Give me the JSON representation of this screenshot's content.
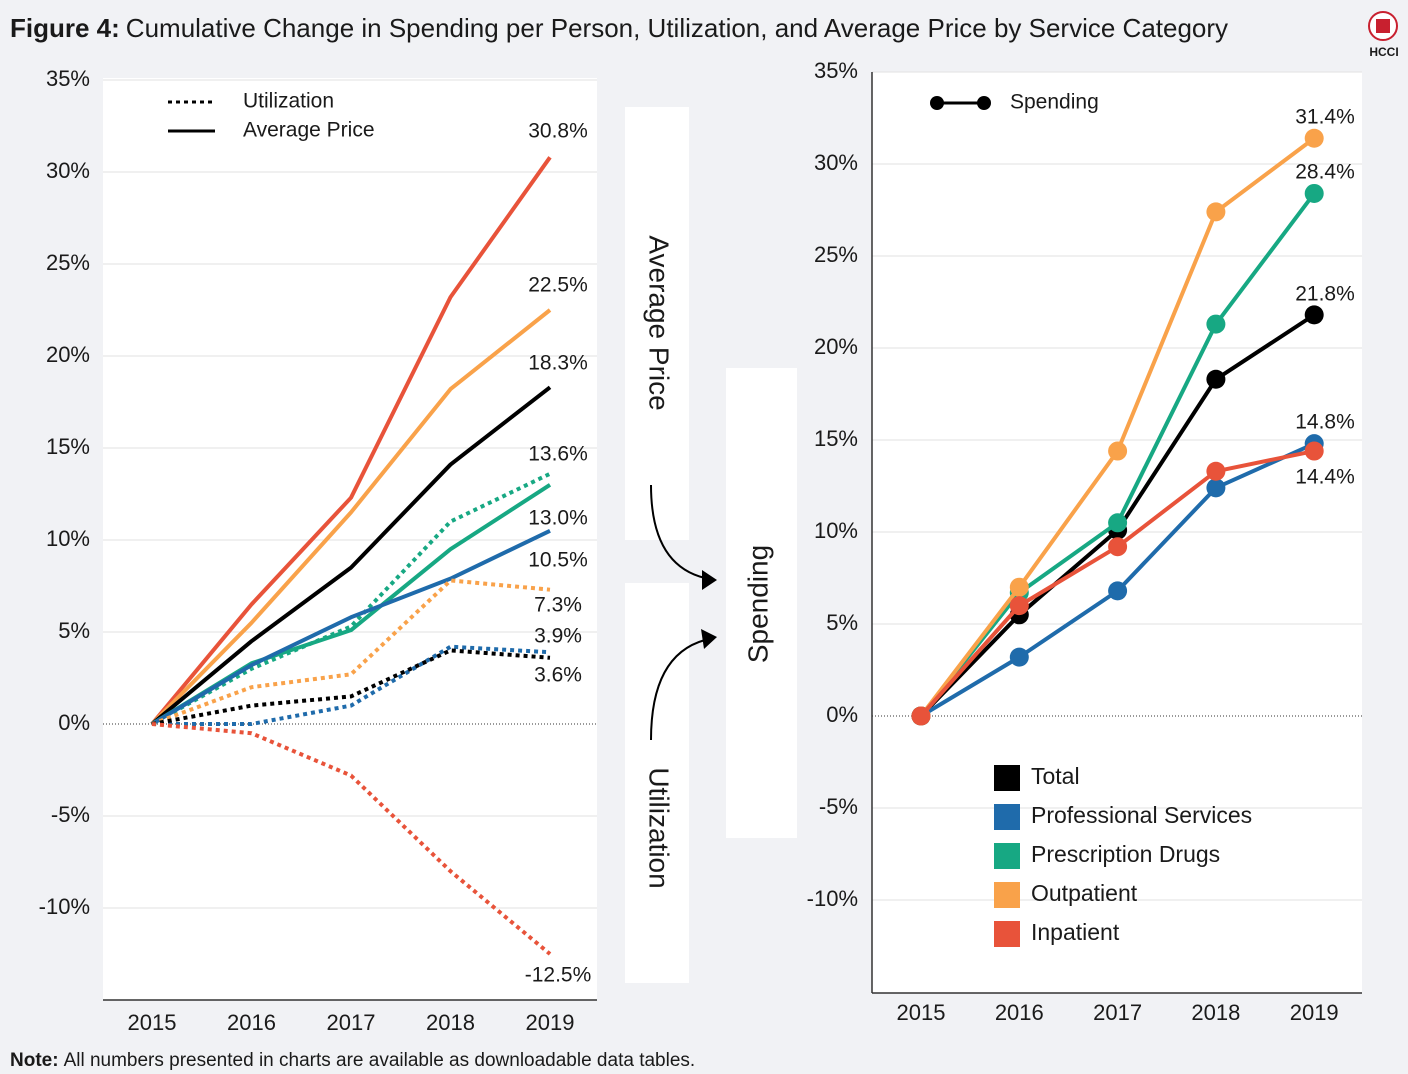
{
  "figure_label": "Figure 4:",
  "title": "Cumulative Change in Spending per Person, Utilization, and Average Price by Service Category",
  "logo": "HCCI",
  "note_label": "Note:",
  "note": "All numbers presented in charts are available as downloadable data tables.",
  "flow_labels": {
    "price": "Average Price",
    "utilization": "Utilization",
    "spending": "Spending"
  },
  "chart_data": [
    {
      "type": "line",
      "categories": [
        "2015",
        "2016",
        "2017",
        "2018",
        "2019"
      ],
      "ylim": [
        -15,
        36
      ],
      "yticks": [
        {
          "value": -10,
          "label": "-10%"
        },
        {
          "value": -5,
          "label": "-5%"
        },
        {
          "value": 0,
          "label": "0%"
        },
        {
          "value": 5,
          "label": "5%"
        },
        {
          "value": 10,
          "label": "10%"
        },
        {
          "value": 15,
          "label": "15%"
        },
        {
          "value": 20,
          "label": "20%"
        },
        {
          "value": 25,
          "label": "25%"
        },
        {
          "value": 30,
          "label": "30%"
        },
        {
          "value": 35,
          "label": "35%"
        }
      ],
      "grid": true,
      "legend": [
        {
          "label": "Utilization",
          "dash": "dotted"
        },
        {
          "label": "Average Price",
          "dash": "solid"
        }
      ],
      "series": [
        {
          "color": "#e8533a",
          "dash": "solid",
          "values": [
            0,
            6.5,
            12.3,
            23.2,
            30.8
          ],
          "value_labels": [
            null,
            null,
            null,
            null,
            "30.8%"
          ]
        },
        {
          "color": "#f9a24a",
          "dash": "solid",
          "values": [
            0,
            5.5,
            11.5,
            18.2,
            22.5
          ],
          "value_labels": [
            null,
            null,
            null,
            null,
            "22.5%"
          ]
        },
        {
          "color": "#000000",
          "dash": "solid",
          "values": [
            0,
            4.5,
            8.5,
            14.1,
            18.3
          ],
          "value_labels": [
            null,
            null,
            null,
            null,
            "18.3%"
          ]
        },
        {
          "color": "#17a883",
          "dash": "dotted",
          "values": [
            0,
            3.0,
            5.3,
            11.0,
            13.6
          ],
          "value_labels": [
            null,
            null,
            null,
            null,
            "13.6%"
          ]
        },
        {
          "color": "#17a883",
          "dash": "solid",
          "values": [
            0,
            3.3,
            5.1,
            9.5,
            13.0
          ],
          "value_labels": [
            null,
            null,
            null,
            null,
            "13.0%"
          ]
        },
        {
          "color": "#1f6bab",
          "dash": "solid",
          "values": [
            0,
            3.2,
            5.8,
            7.9,
            10.5
          ],
          "value_labels": [
            null,
            null,
            null,
            null,
            "10.5%"
          ]
        },
        {
          "color": "#f9a24a",
          "dash": "dotted",
          "values": [
            0,
            2.0,
            2.7,
            7.8,
            7.3
          ],
          "value_labels": [
            null,
            null,
            null,
            null,
            "7.3%"
          ]
        },
        {
          "color": "#1f6bab",
          "dash": "dotted",
          "values": [
            0,
            0.0,
            1.0,
            4.2,
            3.9
          ],
          "value_labels": [
            null,
            null,
            null,
            null,
            "3.9%"
          ]
        },
        {
          "color": "#000000",
          "dash": "dotted",
          "values": [
            0,
            1.0,
            1.5,
            4.0,
            3.6
          ],
          "value_labels": [
            null,
            null,
            null,
            null,
            "3.6%"
          ]
        },
        {
          "color": "#e8533a",
          "dash": "dotted",
          "values": [
            0,
            -0.5,
            -2.8,
            -8.0,
            -12.5
          ],
          "value_labels": [
            null,
            null,
            null,
            null,
            "-12.5%"
          ]
        }
      ]
    },
    {
      "type": "line",
      "markers": true,
      "marker_legend": "Spending",
      "categories": [
        "2015",
        "2016",
        "2017",
        "2018",
        "2019"
      ],
      "ylim": [
        -15,
        36
      ],
      "yticks": [
        {
          "value": -10,
          "label": "-10%"
        },
        {
          "value": -5,
          "label": "-5%"
        },
        {
          "value": 0,
          "label": "0%"
        },
        {
          "value": 5,
          "label": "5%"
        },
        {
          "value": 10,
          "label": "10%"
        },
        {
          "value": 15,
          "label": "15%"
        },
        {
          "value": 20,
          "label": "20%"
        },
        {
          "value": 25,
          "label": "25%"
        },
        {
          "value": 30,
          "label": "30%"
        },
        {
          "value": 35,
          "label": "35%"
        }
      ],
      "grid": true,
      "series": [
        {
          "name": "Total",
          "color": "#000000",
          "values": [
            0,
            5.5,
            10.1,
            18.3,
            21.8
          ],
          "value_labels": [
            null,
            null,
            null,
            null,
            "21.8%"
          ]
        },
        {
          "name": "Professional Services",
          "color": "#1f6bab",
          "values": [
            0,
            3.2,
            6.8,
            12.4,
            14.8
          ],
          "value_labels": [
            null,
            null,
            null,
            null,
            "14.8%"
          ]
        },
        {
          "name": "Prescription Drugs",
          "color": "#17a883",
          "values": [
            0,
            6.7,
            10.5,
            21.3,
            28.4
          ],
          "value_labels": [
            null,
            null,
            null,
            null,
            "28.4%"
          ]
        },
        {
          "name": "Outpatient",
          "color": "#f9a24a",
          "values": [
            0,
            7.0,
            14.4,
            27.4,
            31.4
          ],
          "value_labels": [
            null,
            null,
            null,
            null,
            "31.4%"
          ]
        },
        {
          "name": "Inpatient",
          "color": "#e8533a",
          "values": [
            0,
            6.0,
            9.2,
            13.3,
            14.4
          ],
          "value_labels": [
            null,
            null,
            null,
            null,
            "14.4%"
          ]
        }
      ]
    }
  ]
}
